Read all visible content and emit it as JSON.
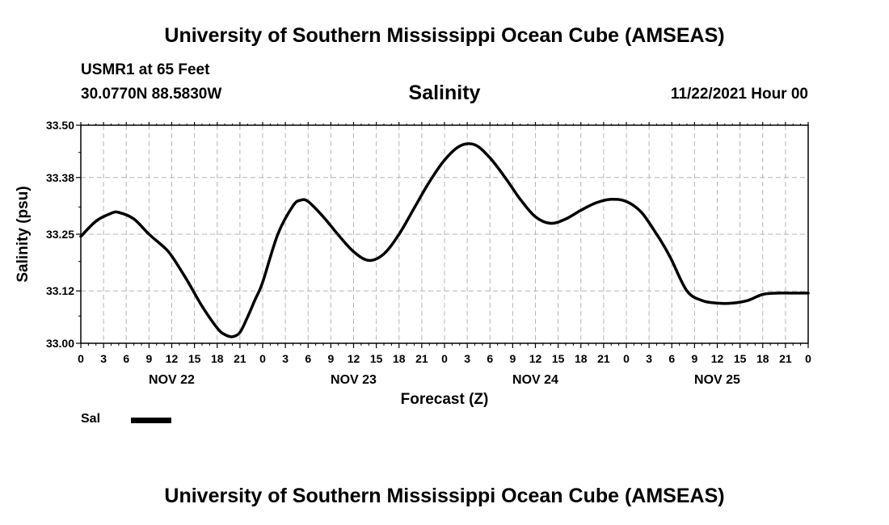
{
  "header": {
    "title": "University of Southern Mississippi Ocean Cube (AMSEAS)",
    "station": "USMR1 at 65 Feet",
    "coords": "30.0770N  88.5830W",
    "run_time": "11/22/2021 Hour 00"
  },
  "footer": {
    "title": "University of Southern Mississippi Ocean Cube (AMSEAS)"
  },
  "legend": {
    "label": "Sal"
  },
  "chart_data": {
    "type": "line",
    "title": "Salinity",
    "xlabel": "Forecast (Z)",
    "ylabel": "Salinity (psu)",
    "xlim": [
      0,
      96
    ],
    "ylim": [
      33.0,
      33.5
    ],
    "yticks": [
      "33.00",
      "33.12",
      "33.25",
      "33.38",
      "33.50"
    ],
    "x_tick_labels": [
      "0",
      "3",
      "6",
      "9",
      "12",
      "15",
      "18",
      "21",
      "0",
      "3",
      "6",
      "9",
      "12",
      "15",
      "18",
      "21",
      "0",
      "3",
      "6",
      "9",
      "12",
      "15",
      "18",
      "21",
      "0",
      "3",
      "6",
      "9",
      "12",
      "15",
      "18",
      "21",
      "0"
    ],
    "day_labels": [
      {
        "label": "NOV 22",
        "hour": 12
      },
      {
        "label": "NOV 23",
        "hour": 36
      },
      {
        "label": "NOV 24",
        "hour": 60
      },
      {
        "label": "NOV 25",
        "hour": 84
      }
    ],
    "grid": true,
    "series": [
      {
        "name": "Sal",
        "color": "#000000",
        "x": [
          0,
          2,
          4,
          5,
          7,
          9,
          11,
          12,
          14,
          16,
          18,
          19,
          20,
          21,
          22,
          23,
          24,
          26,
          28,
          29,
          30,
          32,
          34,
          36,
          38,
          40,
          42,
          44,
          46,
          48,
          50,
          52,
          54,
          56,
          58,
          60,
          62,
          64,
          66,
          68,
          70,
          72,
          74,
          76,
          77,
          78,
          80,
          82,
          84,
          86,
          88,
          90,
          92,
          94,
          96
        ],
        "values": [
          33.245,
          33.28,
          33.298,
          33.3,
          33.285,
          33.25,
          33.22,
          33.2,
          33.145,
          33.085,
          33.035,
          33.02,
          33.015,
          33.025,
          33.06,
          33.1,
          33.14,
          33.25,
          33.315,
          33.328,
          33.325,
          33.29,
          33.248,
          33.21,
          33.19,
          33.205,
          33.25,
          33.31,
          33.37,
          33.42,
          33.452,
          33.455,
          33.425,
          33.38,
          33.33,
          33.29,
          33.275,
          33.285,
          33.305,
          33.322,
          33.33,
          33.325,
          33.3,
          33.25,
          33.222,
          33.19,
          33.12,
          33.098,
          33.092,
          33.092,
          33.098,
          33.112,
          33.115,
          33.115,
          33.115
        ]
      }
    ]
  }
}
